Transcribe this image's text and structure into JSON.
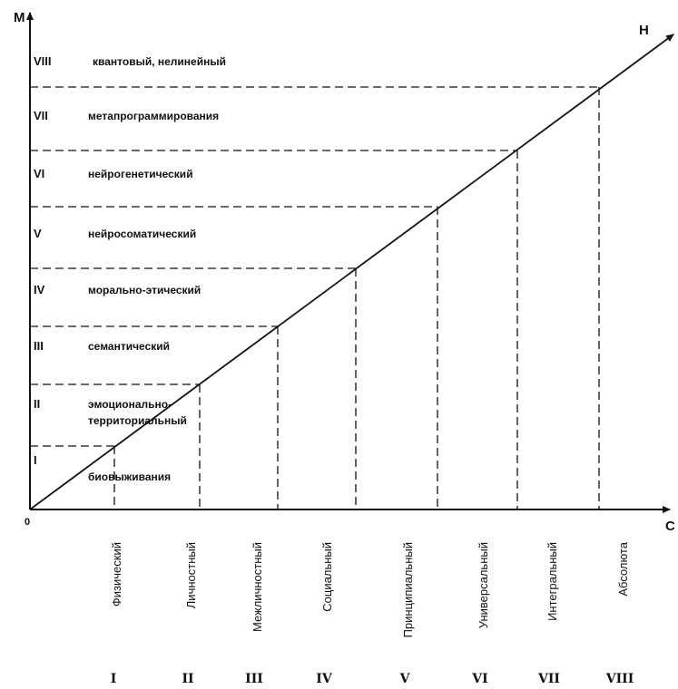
{
  "axes": {
    "vertical_label": "M",
    "horizontal_label": "C",
    "diagonal_label": "H",
    "origin_label": "0"
  },
  "levels": [
    {
      "numeral": "I",
      "name_lines": [
        "биовыживания"
      ]
    },
    {
      "numeral": "II",
      "name_lines": [
        "эмоционально-",
        "территориальный"
      ]
    },
    {
      "numeral": "III",
      "name_lines": [
        "семантический"
      ]
    },
    {
      "numeral": "IV",
      "name_lines": [
        "морально-этический"
      ]
    },
    {
      "numeral": "V",
      "name_lines": [
        "нейросоматический"
      ]
    },
    {
      "numeral": "VI",
      "name_lines": [
        "нейрогенетический"
      ]
    },
    {
      "numeral": "VII",
      "name_lines": [
        "метапрограммирования"
      ]
    },
    {
      "numeral": "VIII",
      "name_lines": [
        "квантовый, нелинейный"
      ]
    }
  ],
  "stages": [
    {
      "name": "Физический",
      "numeral": "I"
    },
    {
      "name": "Личностный",
      "numeral": "II"
    },
    {
      "name": "Межличностный",
      "numeral": "III"
    },
    {
      "name": "Социальный",
      "numeral": "IV"
    },
    {
      "name": "Принципиальный",
      "numeral": "V"
    },
    {
      "name": "Универсальный",
      "numeral": "VI"
    },
    {
      "name": "Интегральный",
      "numeral": "VII"
    },
    {
      "name": "Абсолюта",
      "numeral": "VIII"
    }
  ]
}
